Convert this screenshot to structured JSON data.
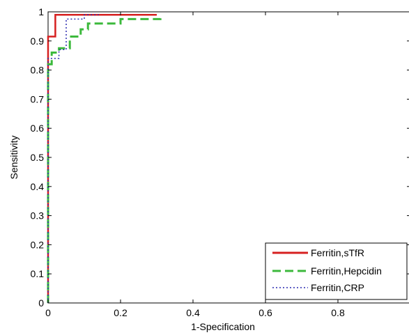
{
  "chart_data": {
    "type": "line",
    "title": "",
    "xlabel": "1-Specification",
    "ylabel": "Sensitivity",
    "xlim": [
      0,
      1
    ],
    "ylim": [
      0,
      1
    ],
    "x_ticks": [
      "0",
      "0.2",
      "0.4",
      "0.6",
      "0.8"
    ],
    "y_ticks": [
      "0",
      "0.1",
      "0.2",
      "0.3",
      "0.4",
      "0.5",
      "0.6",
      "0.7",
      "0.8",
      "0.9",
      "1"
    ],
    "grid": false,
    "legend_position": "bottom-right",
    "series": [
      {
        "name": "Ferritin,sTfR",
        "color": "#d62020",
        "style": "solid",
        "x": [
          0,
          0,
          0.02,
          0.02,
          0.3
        ],
        "y": [
          0,
          0.915,
          0.915,
          0.99,
          0.99
        ]
      },
      {
        "name": "Ferritin,Hepcidin",
        "color": "#3cb93c",
        "style": "dashed",
        "x": [
          0,
          0,
          0.01,
          0.01,
          0.03,
          0.03,
          0.06,
          0.06,
          0.09,
          0.09,
          0.11,
          0.11,
          0.2,
          0.2,
          0.31,
          0.31
        ],
        "y": [
          0,
          0.82,
          0.82,
          0.86,
          0.86,
          0.875,
          0.875,
          0.915,
          0.915,
          0.94,
          0.94,
          0.96,
          0.96,
          0.975,
          0.975,
          0.99
        ]
      },
      {
        "name": "Ferritin,CRP",
        "color": "#2a2ab0",
        "style": "dotted",
        "x": [
          0,
          0,
          0.03,
          0.03,
          0.05,
          0.05,
          0.1,
          0.1,
          0.14
        ],
        "y": [
          0,
          0.84,
          0.84,
          0.87,
          0.87,
          0.975,
          0.975,
          0.99,
          0.99
        ]
      }
    ]
  }
}
